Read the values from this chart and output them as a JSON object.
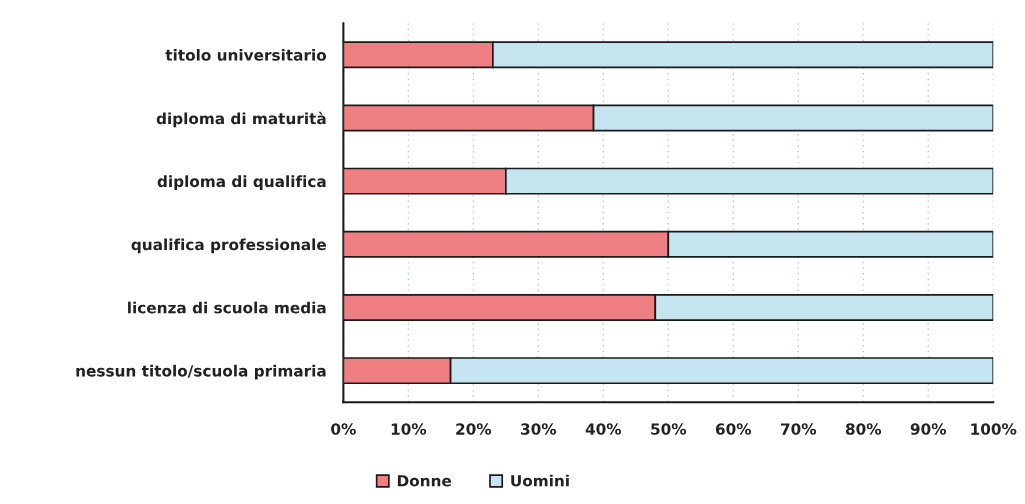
{
  "chart_data": {
    "type": "bar",
    "orientation": "horizontal",
    "stacked": true,
    "categories": [
      "titolo universitario",
      "diploma di maturità",
      "diploma di qualifica",
      "qualifica professionale",
      "licenza di scuola media",
      "nessun titolo/scuola primaria"
    ],
    "series": [
      {
        "name": "Donne",
        "color": "#f07f83",
        "values": [
          23,
          38.5,
          25,
          50,
          48,
          16.5
        ]
      },
      {
        "name": "Uomini",
        "color": "#c4e4f0",
        "values": [
          77,
          61.5,
          75,
          50,
          52,
          83.5
        ]
      }
    ],
    "xlim": [
      0,
      100
    ],
    "xticks": [
      {
        "value": 0,
        "label": "0%"
      },
      {
        "value": 10,
        "label": "10%"
      },
      {
        "value": 20,
        "label": "20%"
      },
      {
        "value": 30,
        "label": "30%"
      },
      {
        "value": 40,
        "label": "40%"
      },
      {
        "value": 50,
        "label": "50%"
      },
      {
        "value": 60,
        "label": "60%"
      },
      {
        "value": 70,
        "label": "70%"
      },
      {
        "value": 80,
        "label": "80%"
      },
      {
        "value": 90,
        "label": "90%"
      },
      {
        "value": 100,
        "label": "100%"
      }
    ],
    "grid": "x",
    "legend": "bottom"
  }
}
